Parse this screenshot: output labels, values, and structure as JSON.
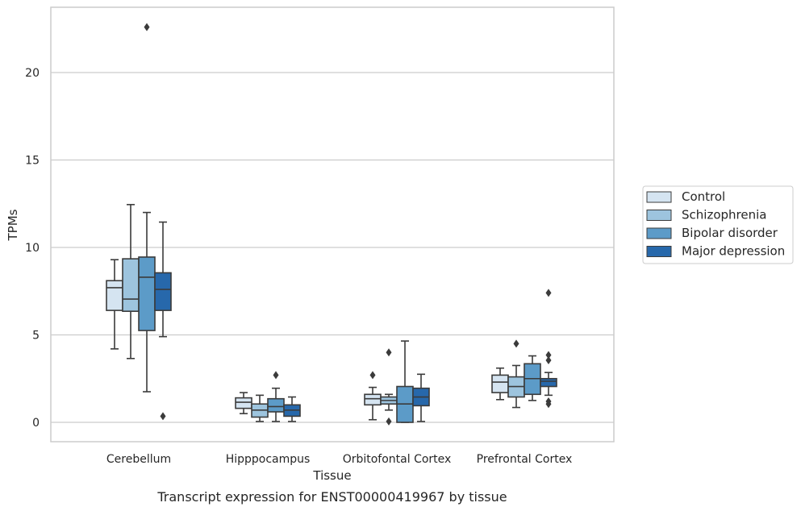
{
  "caption": "Transcript expression for ENST00000419967 by tissue",
  "chart_data": {
    "type": "box",
    "xlabel": "Tissue",
    "ylabel": "TPMs",
    "ylim": [
      -1.1,
      23.5
    ],
    "yticks": [
      0,
      5,
      10,
      15,
      20
    ],
    "grid": "horizontal",
    "legend_position": "right",
    "categories": [
      "Cerebellum",
      "Hipppocampus",
      "Orbitofontal Cortex",
      "Prefrontal Cortex"
    ],
    "series": [
      {
        "name": "Control",
        "color": "#d5e4f1",
        "boxes": [
          {
            "whislo": 4.2,
            "q1": 6.4,
            "median": 7.7,
            "q3": 8.1,
            "whishi": 9.3,
            "fliers": []
          },
          {
            "whislo": 0.5,
            "q1": 0.8,
            "median": 1.15,
            "q3": 1.4,
            "whishi": 1.7,
            "fliers": []
          },
          {
            "whislo": 0.15,
            "q1": 1.0,
            "median": 1.35,
            "q3": 1.6,
            "whishi": 2.0,
            "fliers": [
              2.7
            ]
          },
          {
            "whislo": 1.3,
            "q1": 1.7,
            "median": 2.3,
            "q3": 2.7,
            "whishi": 3.1,
            "fliers": []
          }
        ]
      },
      {
        "name": "Schizophrenia",
        "color": "#9dc4de",
        "boxes": [
          {
            "whislo": 3.65,
            "q1": 6.35,
            "median": 7.05,
            "q3": 9.35,
            "whishi": 12.45,
            "fliers": []
          },
          {
            "whislo": 0.05,
            "q1": 0.3,
            "median": 0.7,
            "q3": 1.05,
            "whishi": 1.55,
            "fliers": []
          },
          {
            "whislo": 0.7,
            "q1": 1.05,
            "median": 1.25,
            "q3": 1.45,
            "whishi": 1.6,
            "fliers": [
              4.0,
              0.05
            ]
          },
          {
            "whislo": 0.85,
            "q1": 1.45,
            "median": 2.05,
            "q3": 2.6,
            "whishi": 3.25,
            "fliers": [
              4.5
            ]
          }
        ]
      },
      {
        "name": "Bipolar disorder",
        "color": "#5c9bc8",
        "boxes": [
          {
            "whislo": 1.75,
            "q1": 5.25,
            "median": 8.3,
            "q3": 9.45,
            "whishi": 12.0,
            "fliers": [
              22.6
            ]
          },
          {
            "whislo": 0.05,
            "q1": 0.6,
            "median": 0.9,
            "q3": 1.35,
            "whishi": 1.95,
            "fliers": [
              2.7
            ]
          },
          {
            "whislo": 0.0,
            "q1": 0.0,
            "median": 1.05,
            "q3": 2.05,
            "whishi": 4.65,
            "fliers": []
          },
          {
            "whislo": 1.25,
            "q1": 1.6,
            "median": 2.5,
            "q3": 3.35,
            "whishi": 3.8,
            "fliers": []
          }
        ]
      },
      {
        "name": "Major depression",
        "color": "#2768ab",
        "boxes": [
          {
            "whislo": 4.9,
            "q1": 6.4,
            "median": 7.6,
            "q3": 8.55,
            "whishi": 11.45,
            "fliers": [
              0.35
            ]
          },
          {
            "whislo": 0.05,
            "q1": 0.35,
            "median": 0.7,
            "q3": 1.0,
            "whishi": 1.45,
            "fliers": []
          },
          {
            "whislo": 0.05,
            "q1": 0.95,
            "median": 1.45,
            "q3": 1.95,
            "whishi": 2.75,
            "fliers": []
          },
          {
            "whislo": 1.55,
            "q1": 2.05,
            "median": 2.35,
            "q3": 2.5,
            "whishi": 2.85,
            "fliers": [
              7.4,
              3.85,
              3.55,
              1.2,
              1.05
            ]
          }
        ]
      }
    ]
  }
}
